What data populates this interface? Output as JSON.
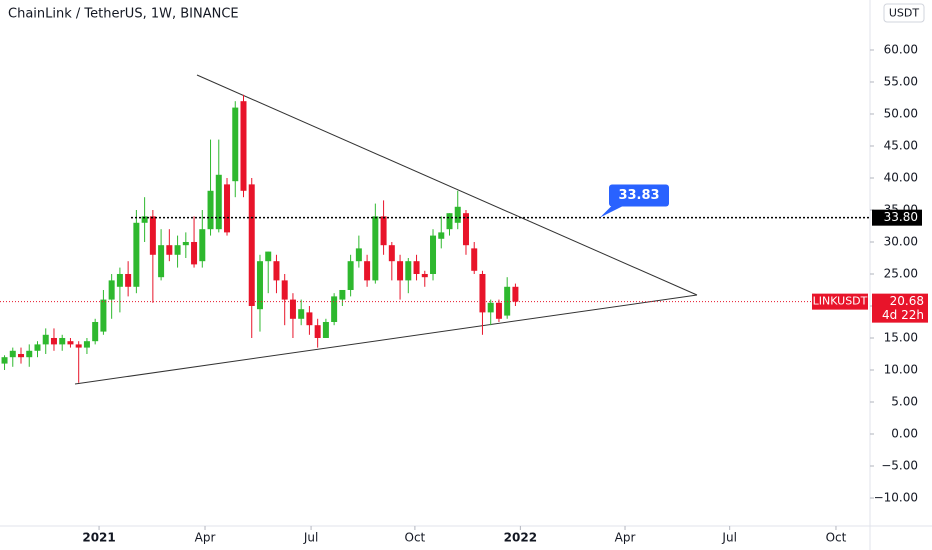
{
  "chart_data": {
    "type": "candlestick",
    "title": "ChainLink / TetherUS, 1W, BINANCE",
    "currency": "USDT",
    "symbol": "LINKUSDT",
    "countdown": "4d 22h",
    "up_color": "#2eb82e",
    "down_color": "#e8142a",
    "open": [
      11,
      12,
      12.5,
      12,
      13,
      14,
      15,
      14,
      14.5,
      14,
      13.5,
      14.5,
      16,
      21,
      23,
      25,
      23,
      33,
      34,
      24.5,
      29.5,
      28,
      29.5,
      30,
      27,
      32,
      32,
      39,
      39.5,
      52,
      39,
      19.5,
      27,
      27,
      24,
      21,
      18,
      19,
      17,
      15,
      17.5,
      21,
      22.5,
      27,
      27,
      24,
      34,
      29.5,
      27,
      24,
      27,
      25,
      25,
      30.5,
      32,
      33,
      34.5,
      29,
      25,
      19,
      20.5,
      18.5,
      23
    ],
    "high": [
      12.3,
      13.5,
      13.5,
      14,
      14.5,
      16.5,
      16.5,
      15.5,
      15,
      14.5,
      15,
      18,
      22.5,
      25,
      26,
      27,
      35,
      37,
      35,
      32,
      32,
      31,
      31.5,
      34,
      35,
      46,
      46,
      40,
      52,
      53,
      40,
      28,
      28.5,
      28,
      25,
      22,
      21,
      20,
      18,
      18,
      22,
      22.5,
      28,
      31,
      28,
      36,
      36.5,
      30,
      28,
      27.5,
      28,
      25.5,
      32,
      34,
      34.5,
      38,
      35,
      30,
      25.5,
      21,
      21,
      24.5,
      23.5
    ],
    "low": [
      10,
      10.5,
      11,
      10.5,
      12,
      12.5,
      13,
      13,
      13.5,
      8,
      12.5,
      14,
      15.5,
      18,
      19,
      21.5,
      22,
      30,
      20.5,
      24,
      27,
      26,
      27.5,
      26,
      26,
      31,
      31.5,
      31,
      37,
      37,
      15,
      16,
      22,
      22,
      17,
      15,
      17,
      15.5,
      13.5,
      15,
      17,
      20,
      21.5,
      26,
      23,
      23.5,
      28,
      24,
      21,
      22,
      24,
      23,
      24,
      29,
      31,
      32,
      28,
      25,
      15.5,
      17,
      17.5,
      18,
      20
    ],
    "close": [
      12,
      13,
      12,
      13,
      14,
      15.5,
      14,
      15,
      14,
      13.5,
      14.5,
      17.5,
      21,
      24,
      25,
      23,
      33,
      34,
      28,
      29.5,
      28,
      29.5,
      30,
      26.5,
      32,
      38,
      40.5,
      31.5,
      51,
      38,
      20,
      27,
      28.5,
      24,
      21,
      18,
      19.5,
      17,
      15,
      17.5,
      21.5,
      22.5,
      27,
      29,
      24,
      34,
      29.5,
      27,
      24,
      27,
      25,
      24.5,
      31,
      31.5,
      34.5,
      35.5,
      29.5,
      25.5,
      19,
      20.5,
      18,
      23,
      20.68
    ],
    "ylim": [
      -14.22,
      67.81
    ],
    "yticks": [
      {
        "value": -10,
        "label": "−10.00"
      },
      {
        "value": -5,
        "label": "−5.00"
      },
      {
        "value": 0,
        "label": "0.00"
      },
      {
        "value": 5,
        "label": "5.00"
      },
      {
        "value": 10,
        "label": "10.00"
      },
      {
        "value": 15,
        "label": "15.00"
      },
      {
        "value": 20,
        "label": "20.00"
      },
      {
        "value": 25,
        "label": "25.00"
      },
      {
        "value": 30,
        "label": "30.00"
      },
      {
        "value": 35,
        "label": "35.00"
      },
      {
        "value": 40,
        "label": "40.00"
      },
      {
        "value": 45,
        "label": "45.00"
      },
      {
        "value": 50,
        "label": "50.00"
      },
      {
        "value": 55,
        "label": "55.00"
      },
      {
        "value": 60,
        "label": "60.00"
      }
    ],
    "xlim": [
      -0.55,
      105.03
    ],
    "xticks": [
      {
        "value": 11.47,
        "label": "2021"
      },
      {
        "value": 24.33,
        "label": "Apr"
      },
      {
        "value": 37.2,
        "label": "Jul"
      },
      {
        "value": 49.8,
        "label": "Oct"
      },
      {
        "value": 62.6,
        "label": "2022"
      },
      {
        "value": 75.3,
        "label": "Apr"
      },
      {
        "value": 88,
        "label": "Jul"
      },
      {
        "value": 100.9,
        "label": "Oct"
      }
    ],
    "hline": {
      "value": 33.8,
      "label": "33.80"
    },
    "callout": 33.83
  }
}
